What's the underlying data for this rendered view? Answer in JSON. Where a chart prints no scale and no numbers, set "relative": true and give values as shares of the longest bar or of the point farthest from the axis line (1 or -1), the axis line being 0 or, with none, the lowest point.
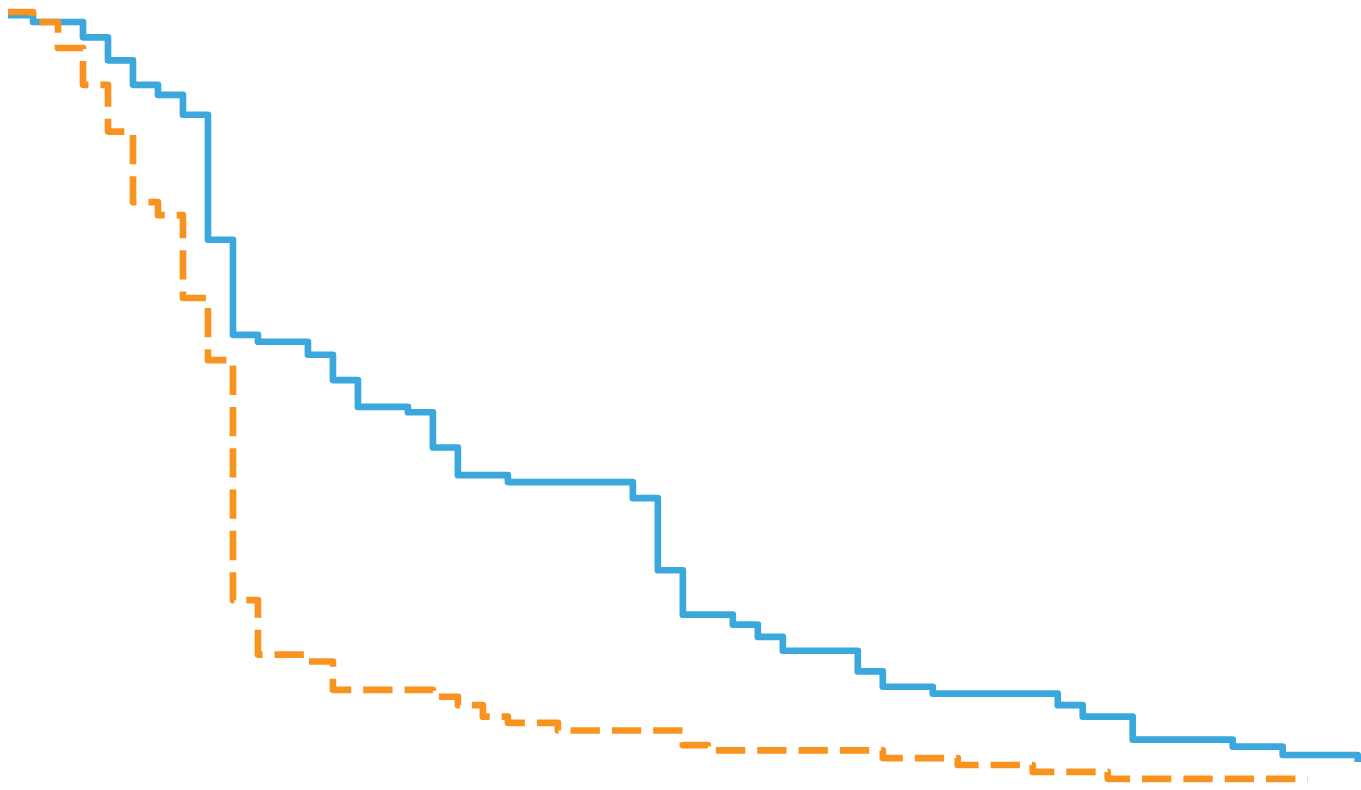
{
  "chart_data": {
    "type": "step",
    "relative": true,
    "marker": "none",
    "categories": [
      null,
      null,
      null,
      null,
      null,
      null,
      null,
      null,
      null,
      null,
      null,
      null,
      null,
      null,
      null,
      null,
      null,
      null,
      null,
      null,
      null,
      null,
      null,
      null,
      null,
      null,
      null,
      null,
      null,
      null,
      null,
      null,
      null,
      null,
      null,
      null,
      null,
      null,
      null,
      null,
      null,
      null,
      null,
      null,
      null,
      null,
      null,
      null,
      null,
      null,
      null,
      null,
      null,
      null,
      null
    ],
    "series": [
      {
        "color": "#3aa8dd",
        "line_style": "solid",
        "values": [
          0.996,
          0.987,
          0.987,
          0.967,
          0.937,
          0.905,
          0.892,
          0.866,
          0.703,
          0.579,
          0.57,
          0.57,
          0.553,
          0.52,
          0.485,
          0.485,
          0.478,
          0.432,
          0.396,
          0.396,
          0.387,
          0.387,
          0.387,
          0.387,
          0.387,
          0.366,
          0.272,
          0.214,
          0.214,
          0.201,
          0.185,
          0.167,
          0.167,
          0.167,
          0.14,
          0.12,
          0.12,
          0.111,
          0.111,
          0.111,
          0.111,
          0.111,
          0.096,
          0.081,
          0.081,
          0.051,
          0.051,
          0.051,
          0.051,
          0.042,
          0.042,
          0.031,
          0.031,
          0.031,
          0.022
        ]
      },
      {
        "color": "#f7931e",
        "line_style": "dashed",
        "values": [
          1.0,
          0.987,
          0.953,
          0.905,
          0.844,
          0.752,
          0.735,
          0.627,
          0.546,
          0.233,
          0.162,
          0.162,
          0.153,
          0.116,
          0.116,
          0.116,
          0.116,
          0.107,
          0.096,
          0.081,
          0.073,
          0.073,
          0.063,
          0.063,
          0.063,
          0.063,
          0.063,
          0.044,
          0.037,
          0.037,
          0.037,
          0.037,
          0.037,
          0.037,
          0.037,
          0.027,
          0.027,
          0.027,
          0.018,
          0.018,
          0.018,
          0.009,
          0.009,
          0.009,
          0,
          0,
          0,
          0,
          0,
          0,
          0,
          0,
          0,
          null,
          null
        ]
      }
    ]
  }
}
